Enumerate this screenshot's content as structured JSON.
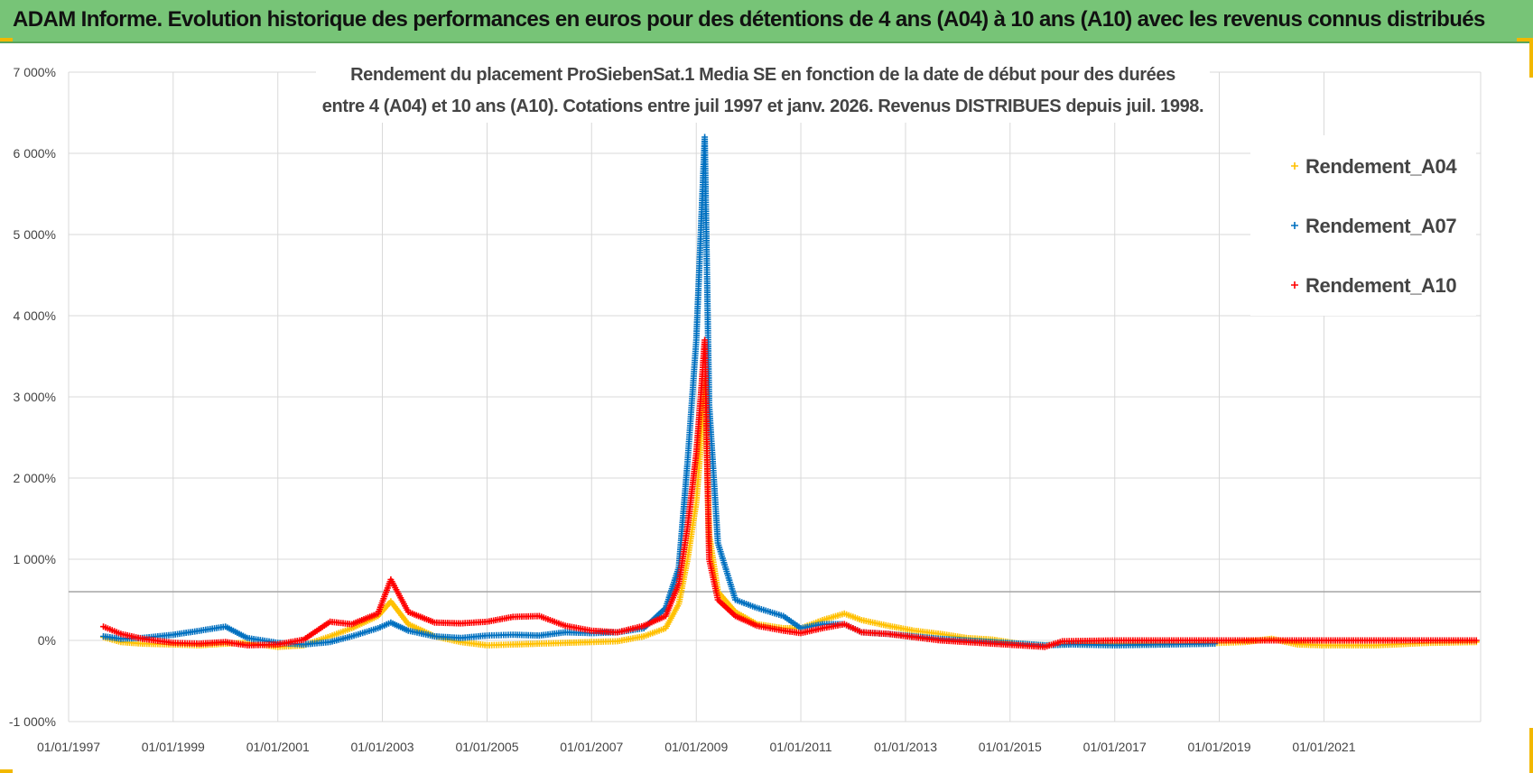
{
  "banner": {
    "title": "ADAM Informe. Evolution historique des performances en euros pour des détentions de 4 ans (A04) à 10 ans (A10) avec les revenus connus distribués"
  },
  "colors": {
    "banner_bg": "#77c477",
    "A04": "#ffc000",
    "A07": "#0070c0",
    "A10": "#ff0000",
    "grid": "#d9d9d9",
    "hline": "#a6a6a6"
  },
  "chart_data": {
    "type": "scatter",
    "title_lines": [
      "Rendement du placement ProSiebenSat.1 Media SE en fonction de la date de début pour des durées",
      "entre 4 (A04) et 10 ans (A10). Cotations entre juil 1997 et janv. 2026. Revenus DISTRIBUES depuis juil. 1998."
    ],
    "xlabel": "",
    "ylabel": "",
    "x_ticks": [
      "01/01/1997",
      "01/01/1999",
      "01/01/2001",
      "01/01/2003",
      "01/01/2005",
      "01/01/2007",
      "01/01/2009",
      "01/01/2011",
      "01/01/2013",
      "01/01/2015",
      "01/01/2017",
      "01/01/2019",
      "01/01/2021"
    ],
    "x_range": [
      "1997-01-01",
      "2023-12-31"
    ],
    "y_ticks": [
      "-1 000%",
      "0%",
      "1 000%",
      "2 000%",
      "3 000%",
      "4 000%",
      "5 000%",
      "6 000%",
      "7 000%"
    ],
    "ylim": [
      -1000,
      7000
    ],
    "reference_line_y": 600,
    "grid": true,
    "legend_position": "top-right",
    "marker": "+",
    "series": [
      {
        "name": "Rendement_A04",
        "color": "#ffc000",
        "points": [
          [
            "1997-09-01",
            40
          ],
          [
            "1998-01-01",
            -20
          ],
          [
            "1998-06-01",
            -40
          ],
          [
            "1999-01-01",
            -50
          ],
          [
            "1999-07-01",
            -60
          ],
          [
            "2000-01-01",
            -40
          ],
          [
            "2000-06-01",
            -30
          ],
          [
            "2001-01-01",
            -80
          ],
          [
            "2001-07-01",
            -60
          ],
          [
            "2002-01-01",
            50
          ],
          [
            "2002-06-01",
            150
          ],
          [
            "2002-12-01",
            300
          ],
          [
            "2003-03-01",
            480
          ],
          [
            "2003-07-01",
            200
          ],
          [
            "2004-01-01",
            50
          ],
          [
            "2004-07-01",
            -20
          ],
          [
            "2005-01-01",
            -60
          ],
          [
            "2005-07-01",
            -50
          ],
          [
            "2006-01-01",
            -40
          ],
          [
            "2006-07-01",
            -30
          ],
          [
            "2007-01-01",
            -20
          ],
          [
            "2007-07-01",
            -10
          ],
          [
            "2008-01-01",
            50
          ],
          [
            "2008-06-01",
            150
          ],
          [
            "2008-09-01",
            450
          ],
          [
            "2008-11-01",
            1000
          ],
          [
            "2009-01-01",
            1700
          ],
          [
            "2009-02-01",
            2400
          ],
          [
            "2009-03-01",
            3200
          ],
          [
            "2009-04-01",
            1300
          ],
          [
            "2009-06-01",
            600
          ],
          [
            "2009-10-01",
            350
          ],
          [
            "2010-03-01",
            200
          ],
          [
            "2010-09-01",
            150
          ],
          [
            "2011-01-01",
            150
          ],
          [
            "2011-06-01",
            250
          ],
          [
            "2011-11-01",
            330
          ],
          [
            "2012-03-01",
            250
          ],
          [
            "2012-09-01",
            180
          ],
          [
            "2013-03-01",
            120
          ],
          [
            "2013-09-01",
            80
          ],
          [
            "2014-03-01",
            30
          ],
          [
            "2014-09-01",
            10
          ],
          [
            "2015-03-01",
            -40
          ],
          [
            "2015-09-01",
            -60
          ],
          [
            "2016-03-01",
            -40
          ],
          [
            "2017-01-01",
            -40
          ],
          [
            "2018-01-01",
            -40
          ],
          [
            "2019-01-01",
            -30
          ],
          [
            "2019-07-01",
            -20
          ],
          [
            "2020-01-01",
            20
          ],
          [
            "2020-07-01",
            -50
          ],
          [
            "2021-01-01",
            -60
          ],
          [
            "2022-01-01",
            -60
          ],
          [
            "2023-01-01",
            -30
          ],
          [
            "2023-12-01",
            -20
          ]
        ]
      },
      {
        "name": "Rendement_A07",
        "color": "#0070c0",
        "points": [
          [
            "1997-09-01",
            50
          ],
          [
            "1998-01-01",
            20
          ],
          [
            "1998-06-01",
            30
          ],
          [
            "1999-01-01",
            70
          ],
          [
            "1999-06-01",
            110
          ],
          [
            "2000-01-01",
            170
          ],
          [
            "2000-06-01",
            30
          ],
          [
            "2001-01-01",
            -30
          ],
          [
            "2001-07-01",
            -50
          ],
          [
            "2002-01-01",
            -20
          ],
          [
            "2002-06-01",
            50
          ],
          [
            "2002-12-01",
            150
          ],
          [
            "2003-03-01",
            220
          ],
          [
            "2003-07-01",
            120
          ],
          [
            "2004-01-01",
            50
          ],
          [
            "2004-07-01",
            30
          ],
          [
            "2005-01-01",
            60
          ],
          [
            "2005-07-01",
            70
          ],
          [
            "2006-01-01",
            60
          ],
          [
            "2006-07-01",
            100
          ],
          [
            "2007-01-01",
            90
          ],
          [
            "2007-07-01",
            100
          ],
          [
            "2008-01-01",
            150
          ],
          [
            "2008-06-01",
            400
          ],
          [
            "2008-09-01",
            900
          ],
          [
            "2008-11-01",
            2200
          ],
          [
            "2009-01-01",
            3700
          ],
          [
            "2009-02-01",
            5000
          ],
          [
            "2009-03-01",
            6200
          ],
          [
            "2009-04-01",
            2900
          ],
          [
            "2009-06-01",
            1200
          ],
          [
            "2009-10-01",
            500
          ],
          [
            "2010-03-01",
            400
          ],
          [
            "2010-09-01",
            300
          ],
          [
            "2011-01-01",
            150
          ],
          [
            "2011-06-01",
            200
          ],
          [
            "2011-11-01",
            200
          ],
          [
            "2012-03-01",
            100
          ],
          [
            "2012-09-01",
            80
          ],
          [
            "2013-03-01",
            50
          ],
          [
            "2013-09-01",
            20
          ],
          [
            "2014-03-01",
            0
          ],
          [
            "2014-09-01",
            -20
          ],
          [
            "2015-03-01",
            -40
          ],
          [
            "2015-09-01",
            -60
          ],
          [
            "2016-03-01",
            -50
          ],
          [
            "2017-01-01",
            -60
          ],
          [
            "2018-01-01",
            -50
          ],
          [
            "2018-12-01",
            -40
          ]
        ]
      },
      {
        "name": "Rendement_A10",
        "color": "#ff0000",
        "points": [
          [
            "1997-09-01",
            170
          ],
          [
            "1998-01-01",
            80
          ],
          [
            "1998-06-01",
            20
          ],
          [
            "1999-01-01",
            -30
          ],
          [
            "1999-07-01",
            -40
          ],
          [
            "2000-01-01",
            -20
          ],
          [
            "2000-06-01",
            -60
          ],
          [
            "2001-01-01",
            -50
          ],
          [
            "2001-07-01",
            10
          ],
          [
            "2002-01-01",
            230
          ],
          [
            "2002-06-01",
            200
          ],
          [
            "2002-12-01",
            330
          ],
          [
            "2003-03-01",
            750
          ],
          [
            "2003-07-01",
            350
          ],
          [
            "2004-01-01",
            220
          ],
          [
            "2004-07-01",
            210
          ],
          [
            "2005-01-01",
            230
          ],
          [
            "2005-07-01",
            290
          ],
          [
            "2006-01-01",
            300
          ],
          [
            "2006-07-01",
            180
          ],
          [
            "2007-01-01",
            120
          ],
          [
            "2007-07-01",
            100
          ],
          [
            "2008-01-01",
            180
          ],
          [
            "2008-06-01",
            300
          ],
          [
            "2008-09-01",
            700
          ],
          [
            "2008-11-01",
            1400
          ],
          [
            "2009-01-01",
            2300
          ],
          [
            "2009-02-01",
            3000
          ],
          [
            "2009-03-01",
            3700
          ],
          [
            "2009-04-01",
            1000
          ],
          [
            "2009-06-01",
            500
          ],
          [
            "2009-10-01",
            300
          ],
          [
            "2010-03-01",
            180
          ],
          [
            "2010-09-01",
            120
          ],
          [
            "2011-01-01",
            90
          ],
          [
            "2011-06-01",
            150
          ],
          [
            "2011-11-01",
            200
          ],
          [
            "2012-03-01",
            100
          ],
          [
            "2012-09-01",
            80
          ],
          [
            "2013-03-01",
            40
          ],
          [
            "2013-09-01",
            0
          ],
          [
            "2014-03-01",
            -20
          ],
          [
            "2014-09-01",
            -40
          ],
          [
            "2015-03-01",
            -60
          ],
          [
            "2015-09-01",
            -80
          ],
          [
            "2016-01-01",
            -10
          ],
          [
            "2017-01-01",
            0
          ],
          [
            "2018-01-01",
            0
          ],
          [
            "2019-01-01",
            0
          ],
          [
            "2020-01-01",
            0
          ],
          [
            "2021-01-01",
            0
          ],
          [
            "2022-01-01",
            0
          ],
          [
            "2023-01-01",
            0
          ],
          [
            "2023-12-01",
            0
          ]
        ]
      }
    ]
  }
}
